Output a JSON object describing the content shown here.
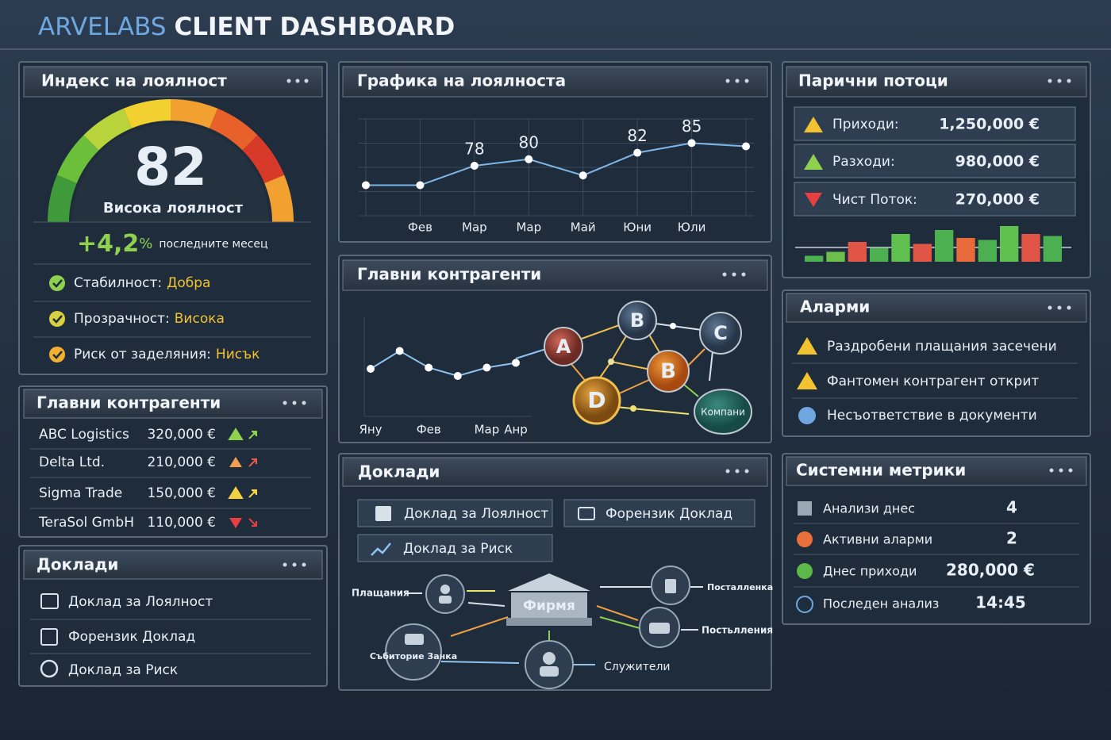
{
  "header": {
    "brand": "ARVELABS",
    "title": "CLIENT DASHBOARD"
  },
  "loyalty_index": {
    "title": "Индекс на лоялност",
    "score": 82,
    "score_label": "Висока лоялност",
    "change": "+4,2",
    "change_unit": "%",
    "change_period": "последните месец",
    "items": [
      {
        "label": "Стабилност:",
        "value": "Добра"
      },
      {
        "label": "Прозрачност:",
        "value": "Висока"
      },
      {
        "label": "Риск от заделяния:",
        "value": "Нисък"
      }
    ]
  },
  "loyalty_chart": {
    "title": "Графика на лоялноста",
    "chart_data": {
      "type": "line",
      "categories": [
        null,
        "Фев",
        "Мар",
        "Мар",
        "Май",
        "Юни",
        "Юли",
        null
      ],
      "values": [
        72,
        72,
        78,
        80,
        75,
        82,
        85,
        84
      ],
      "value_labels": [
        null,
        null,
        "78",
        "80",
        null,
        "82",
        "85",
        null
      ],
      "ylim": [
        65,
        90
      ],
      "color": "#7fb6e8",
      "grid": true
    }
  },
  "cash_flows": {
    "title": "Парични потоци",
    "rows": [
      {
        "label": "Приходи:",
        "value": "1,250,000 €"
      },
      {
        "label": "Разходи:",
        "value": "980,000 €"
      },
      {
        "label": "Чист Поток:",
        "value": "270,000 €"
      }
    ],
    "chart_data": {
      "type": "bar",
      "values": [
        6,
        10,
        20,
        14,
        28,
        18,
        32,
        24,
        22,
        36,
        28,
        26
      ],
      "colors": [
        "#4caf50",
        "#6cc04a",
        "#e05545",
        "#4caf50",
        "#5fbf4f",
        "#e05545",
        "#4caf50",
        "#e86a3a",
        "#4caf50",
        "#5fbf4f",
        "#e05545",
        "#4caf50"
      ],
      "ylim": [
        0,
        40
      ]
    }
  },
  "top_contragents": {
    "title": "Главни контрагенти",
    "rows": [
      {
        "name": "ABC Logistics",
        "amount": "320,000 €"
      },
      {
        "name": "Delta Ltd.",
        "amount": "210,000 €"
      },
      {
        "name": "Sigma Trade",
        "amount": "150,000 €"
      },
      {
        "name": "TeraSol GmbH",
        "amount": "110,000 €"
      }
    ]
  },
  "contragents_network": {
    "title": "Главни контрагенти",
    "chart_data": {
      "type": "line",
      "categories": [
        "Яну",
        null,
        "Фев",
        null,
        "Мар",
        "Анр"
      ],
      "values": [
        40,
        70,
        42,
        28,
        42,
        50
      ],
      "ylim": [
        0,
        100
      ],
      "color": "#8fc3f0"
    },
    "nodes": [
      "A",
      "B",
      "C",
      "B",
      "D",
      "Компани"
    ]
  },
  "alarms": {
    "title": "Аларми",
    "items": [
      "Раздробени плащания засечени",
      "Фантомен контрагент открит",
      "Несъответствие в документи"
    ]
  },
  "reports_left": {
    "title": "Доклади",
    "items": [
      "Доклад за Лоялност",
      "Форензик Доклад",
      "Доклад за Риск"
    ]
  },
  "reports_center": {
    "title": "Доклади",
    "buttons": [
      "Доклад за Лоялност",
      "Форензик Доклад",
      "Доклад за Риск"
    ],
    "diagram": {
      "center": "Фирмя",
      "labels": [
        "Плащания",
        "Посталленка",
        "Постьлления",
        "Събиторие Занка",
        "Служители"
      ]
    }
  },
  "system_metrics": {
    "title": "Системни метрики",
    "rows": [
      {
        "label": "Анализи днес",
        "value": "4"
      },
      {
        "label": "Активни аларми",
        "value": "2"
      },
      {
        "label": "Днес приходи",
        "value": "280,000 €"
      },
      {
        "label": "Последен анализ",
        "value": "14:45"
      }
    ]
  }
}
